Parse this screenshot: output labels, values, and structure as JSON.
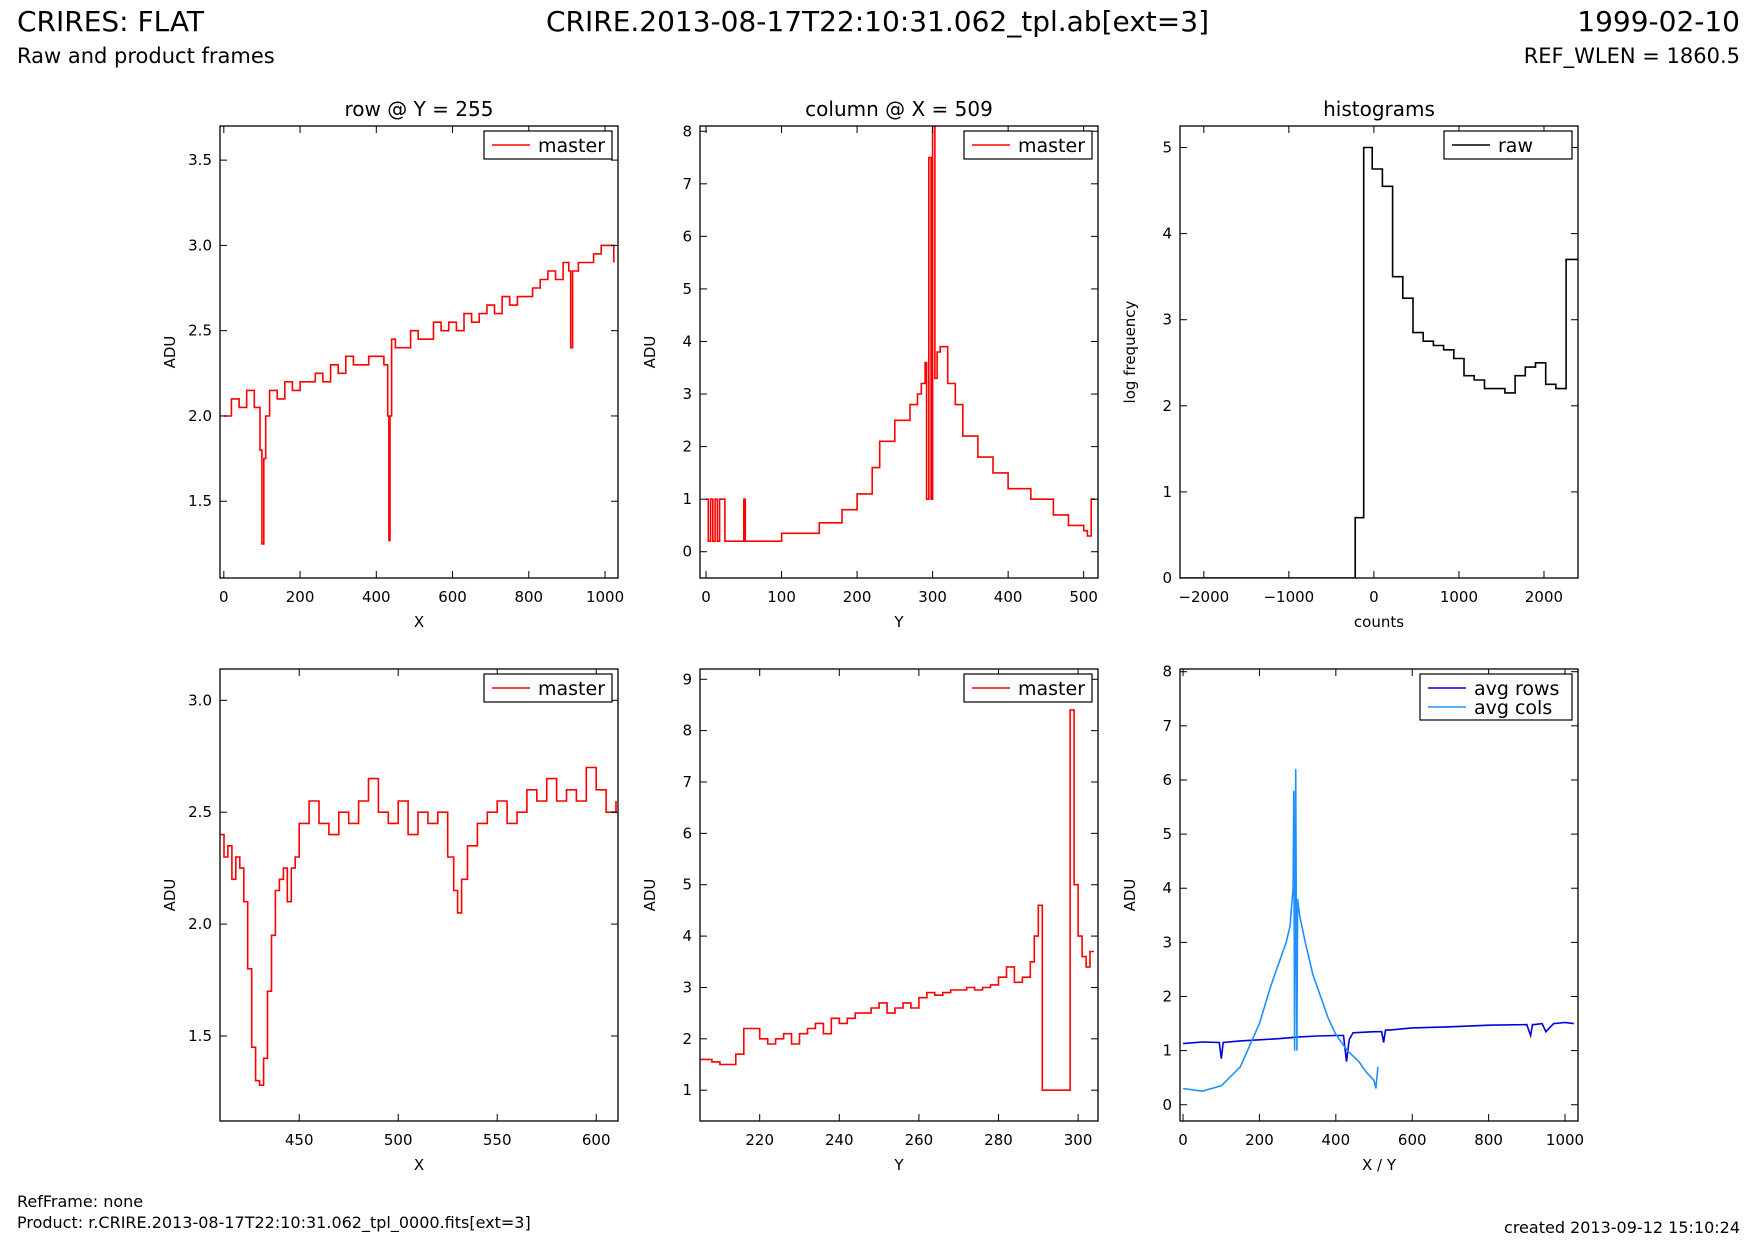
{
  "header": {
    "title_left": "CRIRES: FLAT",
    "subtitle_left": "Raw and product frames",
    "title_center": "CRIRE.2013-08-17T22:10:31.062_tpl.ab[ext=3]",
    "title_right": "1999-02-10",
    "subtitle_right": "REF_WLEN = 1860.5"
  },
  "footer": {
    "refframe": "RefFrame: none",
    "product": "Product: r.CRIRE.2013-08-17T22:10:31.062_tpl_0000.fits[ext=3]",
    "created": "created 2013-09-12 15:10:24"
  },
  "colors": {
    "master": "#ff0000",
    "raw": "#000000",
    "avg_rows": "#0000dd",
    "avg_cols": "#1e90ff"
  },
  "chart_data": [
    {
      "id": "row",
      "type": "line",
      "title": "row @ Y = 255",
      "xlabel": "X",
      "ylabel": "ADU",
      "xlim": [
        -10,
        1034
      ],
      "ylim": [
        1.05,
        3.7
      ],
      "xticks": [
        0,
        200,
        400,
        600,
        800,
        1000
      ],
      "yticks": [
        1.5,
        2.0,
        2.5,
        3.0,
        3.5
      ],
      "ytick_labels": [
        "1.5",
        "2.0",
        "2.5",
        "3.0",
        "3.5"
      ],
      "legend_loc": "top-right",
      "series": [
        {
          "name": "master",
          "color": "#ff0000",
          "step": true,
          "x": [
            0,
            20,
            40,
            60,
            80,
            95,
            100,
            105,
            110,
            120,
            140,
            160,
            180,
            200,
            220,
            240,
            260,
            280,
            300,
            320,
            340,
            360,
            380,
            400,
            420,
            430,
            433,
            436,
            440,
            450,
            470,
            490,
            510,
            530,
            550,
            570,
            590,
            610,
            630,
            650,
            670,
            690,
            710,
            730,
            750,
            770,
            790,
            810,
            830,
            850,
            870,
            890,
            905,
            910,
            915,
            930,
            950,
            970,
            990,
            1010,
            1023
          ],
          "y": [
            2.0,
            2.1,
            2.05,
            2.15,
            2.05,
            1.8,
            1.25,
            1.75,
            2.0,
            2.15,
            2.1,
            2.2,
            2.15,
            2.2,
            2.2,
            2.25,
            2.2,
            2.3,
            2.25,
            2.35,
            2.3,
            2.3,
            2.35,
            2.35,
            2.3,
            2.0,
            1.27,
            2.0,
            2.45,
            2.4,
            2.4,
            2.5,
            2.45,
            2.45,
            2.55,
            2.5,
            2.55,
            2.5,
            2.6,
            2.55,
            2.6,
            2.65,
            2.6,
            2.7,
            2.65,
            2.7,
            2.7,
            2.75,
            2.8,
            2.85,
            2.8,
            2.9,
            2.85,
            2.4,
            2.85,
            2.9,
            2.9,
            2.95,
            3.0,
            3.0,
            2.9
          ]
        }
      ]
    },
    {
      "id": "column",
      "type": "line",
      "title": "column @ X = 509",
      "xlabel": "Y",
      "ylabel": "ADU",
      "xlim": [
        -8,
        519
      ],
      "ylim": [
        -0.5,
        8.1
      ],
      "xticks": [
        0,
        100,
        200,
        300,
        400,
        500
      ],
      "yticks": [
        0,
        1,
        2,
        3,
        4,
        5,
        6,
        7,
        8
      ],
      "ytick_labels": [
        "0",
        "1",
        "2",
        "3",
        "4",
        "5",
        "6",
        "7",
        "8"
      ],
      "legend_loc": "top-right",
      "series": [
        {
          "name": "master",
          "color": "#ff0000",
          "step": true,
          "x": [
            0,
            3,
            6,
            9,
            12,
            15,
            18,
            25,
            50,
            52,
            60,
            100,
            150,
            180,
            200,
            220,
            230,
            250,
            270,
            280,
            285,
            290,
            292,
            295,
            298,
            300,
            303,
            306,
            310,
            320,
            330,
            340,
            360,
            380,
            400,
            430,
            460,
            480,
            500,
            505,
            510,
            515
          ],
          "y": [
            1.0,
            0.2,
            1.0,
            0.2,
            1.0,
            0.2,
            1.0,
            0.2,
            1.0,
            0.2,
            0.2,
            0.35,
            0.55,
            0.8,
            1.1,
            1.6,
            2.1,
            2.5,
            2.8,
            3.0,
            3.2,
            3.6,
            1.0,
            7.5,
            1.0,
            8.1,
            3.3,
            3.8,
            3.9,
            3.2,
            2.8,
            2.2,
            1.8,
            1.5,
            1.2,
            1.0,
            0.7,
            0.5,
            0.4,
            0.3,
            1.0,
            1.0
          ]
        }
      ]
    },
    {
      "id": "histograms",
      "type": "line",
      "title": "histograms",
      "xlabel": "counts",
      "ylabel": "log frequency",
      "xlim": [
        -2280,
        2400
      ],
      "ylim": [
        0,
        5.25
      ],
      "xticks": [
        -2000,
        -1000,
        0,
        1000,
        2000
      ],
      "xtick_labels": [
        "−2000",
        "−1000",
        "0",
        "1000",
        "2000"
      ],
      "yticks": [
        0,
        1,
        2,
        3,
        4,
        5
      ],
      "ytick_labels": [
        "0",
        "1",
        "2",
        "3",
        "4",
        "5"
      ],
      "legend_loc": "top-right",
      "series": [
        {
          "name": "raw",
          "color": "#000000",
          "step": true,
          "x": [
            -2280,
            -220,
            -120,
            -20,
            100,
            220,
            340,
            460,
            580,
            700,
            820,
            940,
            1060,
            1180,
            1300,
            1420,
            1540,
            1660,
            1780,
            1900,
            2020,
            2140,
            2260,
            2400
          ],
          "y": [
            0,
            0.7,
            5.0,
            4.75,
            4.55,
            3.5,
            3.25,
            2.85,
            2.75,
            2.7,
            2.65,
            2.55,
            2.35,
            2.3,
            2.2,
            2.2,
            2.15,
            2.35,
            2.45,
            2.5,
            2.25,
            2.2,
            3.7,
            3.7
          ]
        }
      ]
    },
    {
      "id": "row-zoom",
      "type": "line",
      "title": "",
      "xlabel": "X",
      "ylabel": "ADU",
      "xlim": [
        410,
        611
      ],
      "ylim": [
        1.12,
        3.14
      ],
      "xticks": [
        450,
        500,
        550,
        600
      ],
      "yticks": [
        1.5,
        2.0,
        2.5,
        3.0
      ],
      "ytick_labels": [
        "1.5",
        "2.0",
        "2.5",
        "3.0"
      ],
      "legend_loc": "top-right",
      "series": [
        {
          "name": "master",
          "color": "#ff0000",
          "step": true,
          "x": [
            410,
            412,
            414,
            416,
            418,
            420,
            422,
            424,
            426,
            428,
            430,
            432,
            434,
            436,
            438,
            440,
            442,
            444,
            446,
            448,
            450,
            455,
            460,
            465,
            470,
            475,
            480,
            485,
            490,
            495,
            500,
            505,
            510,
            515,
            520,
            525,
            528,
            530,
            532,
            535,
            540,
            545,
            550,
            555,
            560,
            565,
            570,
            575,
            580,
            585,
            590,
            595,
            600,
            605,
            610
          ],
          "y": [
            2.4,
            2.3,
            2.35,
            2.2,
            2.3,
            2.25,
            2.1,
            1.8,
            1.45,
            1.3,
            1.28,
            1.4,
            1.7,
            1.95,
            2.15,
            2.2,
            2.25,
            2.1,
            2.25,
            2.3,
            2.45,
            2.55,
            2.45,
            2.4,
            2.5,
            2.45,
            2.55,
            2.65,
            2.5,
            2.45,
            2.55,
            2.4,
            2.5,
            2.45,
            2.5,
            2.3,
            2.15,
            2.05,
            2.2,
            2.35,
            2.45,
            2.5,
            2.55,
            2.45,
            2.5,
            2.6,
            2.55,
            2.65,
            2.55,
            2.6,
            2.55,
            2.7,
            2.6,
            2.5,
            2.55
          ]
        }
      ]
    },
    {
      "id": "column-zoom",
      "type": "line",
      "title": "",
      "xlabel": "Y",
      "ylabel": "ADU",
      "xlim": [
        205,
        305
      ],
      "ylim": [
        0.4,
        9.2
      ],
      "xticks": [
        220,
        240,
        260,
        280,
        300
      ],
      "yticks": [
        1,
        2,
        3,
        4,
        5,
        6,
        7,
        8,
        9
      ],
      "ytick_labels": [
        "1",
        "2",
        "3",
        "4",
        "5",
        "6",
        "7",
        "8",
        "9"
      ],
      "legend_loc": "top-right",
      "series": [
        {
          "name": "master",
          "color": "#ff0000",
          "step": true,
          "x": [
            205,
            208,
            210,
            212,
            214,
            216,
            218,
            220,
            222,
            224,
            226,
            228,
            230,
            232,
            234,
            236,
            238,
            240,
            242,
            244,
            246,
            248,
            250,
            252,
            254,
            256,
            258,
            260,
            262,
            264,
            266,
            268,
            270,
            272,
            274,
            276,
            278,
            280,
            282,
            284,
            286,
            288,
            289,
            290,
            291,
            298,
            299,
            300,
            301,
            302,
            303,
            304
          ],
          "y": [
            1.6,
            1.55,
            1.5,
            1.5,
            1.7,
            2.2,
            2.2,
            2.0,
            1.9,
            2.0,
            2.1,
            1.9,
            2.1,
            2.2,
            2.3,
            2.1,
            2.4,
            2.3,
            2.4,
            2.5,
            2.5,
            2.6,
            2.7,
            2.5,
            2.6,
            2.7,
            2.6,
            2.8,
            2.9,
            2.85,
            2.9,
            2.95,
            2.95,
            3.0,
            2.95,
            3.0,
            3.05,
            3.2,
            3.4,
            3.1,
            3.2,
            3.5,
            4.0,
            4.6,
            1.0,
            8.4,
            5.0,
            4.0,
            3.6,
            3.4,
            3.7,
            3.7
          ]
        }
      ]
    },
    {
      "id": "averages",
      "type": "line",
      "title": "",
      "xlabel": "X / Y",
      "ylabel": "ADU",
      "xlim": [
        -8,
        1034
      ],
      "ylim": [
        -0.3,
        8.05
      ],
      "xticks": [
        0,
        200,
        400,
        600,
        800,
        1000
      ],
      "yticks": [
        0,
        1,
        2,
        3,
        4,
        5,
        6,
        7,
        8
      ],
      "ytick_labels": [
        "0",
        "1",
        "2",
        "3",
        "4",
        "5",
        "6",
        "7",
        "8"
      ],
      "legend_loc": "top-right",
      "series": [
        {
          "name": "avg rows",
          "color": "#0000dd",
          "step": false,
          "x": [
            0,
            50,
            95,
            100,
            105,
            150,
            200,
            250,
            300,
            350,
            400,
            420,
            428,
            435,
            445,
            500,
            520,
            525,
            530,
            540,
            600,
            700,
            800,
            900,
            910,
            915,
            920,
            940,
            950,
            970,
            1000,
            1023
          ],
          "y": [
            1.13,
            1.16,
            1.15,
            0.85,
            1.15,
            1.18,
            1.2,
            1.22,
            1.25,
            1.27,
            1.28,
            1.28,
            0.8,
            1.2,
            1.33,
            1.35,
            1.35,
            1.15,
            1.38,
            1.38,
            1.42,
            1.44,
            1.47,
            1.48,
            1.28,
            1.48,
            1.48,
            1.5,
            1.35,
            1.5,
            1.52,
            1.5
          ]
        },
        {
          "name": "avg cols",
          "color": "#1e90ff",
          "step": false,
          "x": [
            0,
            50,
            100,
            150,
            200,
            230,
            250,
            270,
            280,
            288,
            290,
            292,
            295,
            298,
            300,
            305,
            320,
            340,
            360,
            380,
            400,
            430,
            460,
            480,
            500,
            505,
            510
          ],
          "y": [
            0.3,
            0.25,
            0.35,
            0.7,
            1.5,
            2.2,
            2.6,
            3.0,
            3.3,
            4.0,
            5.8,
            1.0,
            6.2,
            1.0,
            3.8,
            3.5,
            3.0,
            2.4,
            2.0,
            1.6,
            1.3,
            1.0,
            0.8,
            0.6,
            0.45,
            0.3,
            0.7
          ]
        }
      ]
    }
  ]
}
